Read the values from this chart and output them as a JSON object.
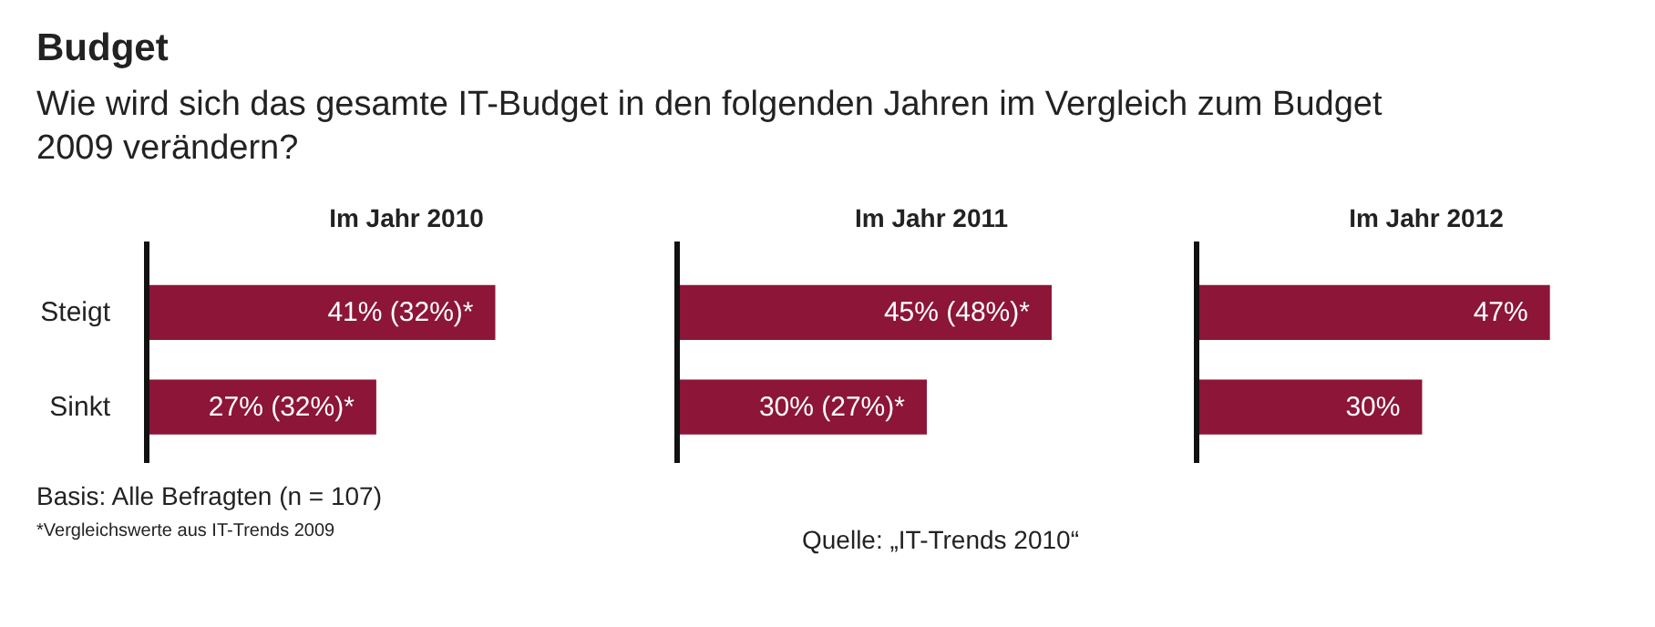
{
  "chart_data": [
    {
      "type": "bar",
      "orientation": "horizontal",
      "title": "Im Jahr 2010",
      "categories": [
        "Steigt",
        "Sinkt"
      ],
      "values": [
        41,
        27
      ],
      "color": "#8c1538",
      "value_labels": [
        "41% (32%)*",
        "27% (32%)*"
      ],
      "tick_labels": "y",
      "grid": false,
      "annotations": [
        "Budget",
        "Wie wird sich das gesamte IT-Budget in den folgenden Jahren im Vergleich zum Budget 2009 verändern?",
        "Basis: Alle Befragten (n = 107)",
        "*Vergleichswerte aus IT-Trends 2009"
      ]
    },
    {
      "type": "bar",
      "orientation": "horizontal",
      "title": "Im Jahr 2011",
      "categories": [
        null,
        null
      ],
      "values": [
        45,
        30
      ],
      "color": "#8c1538",
      "value_labels": [
        "45% (48%)*",
        "30% (27%)*"
      ],
      "tick_labels": false,
      "grid": false
    },
    {
      "type": "bar",
      "orientation": "horizontal",
      "title": "Im Jahr 2012",
      "categories": [
        null,
        null
      ],
      "values": [
        47,
        30
      ],
      "color": "#8c1538",
      "value_labels": [
        "47%",
        "30%"
      ],
      "tick_labels": false,
      "grid": false,
      "annotations": [
        "Quelle: „IT-Trends 2010“"
      ]
    }
  ]
}
